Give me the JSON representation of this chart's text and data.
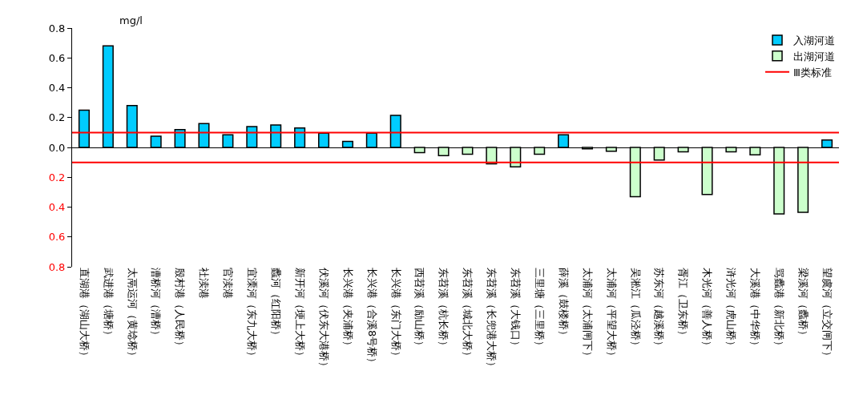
{
  "chart_data": {
    "type": "bar",
    "ylabel": "mg/l",
    "stacked": true,
    "legend": "top right",
    "categories": [
      "直湖港（湖山大桥）",
      "武进港（塘桥）",
      "太鬲运河（黄埝桥）",
      "漕桥河（漕桥）",
      "殷村港（人民桥）",
      "社渎港",
      "官渎港",
      "宜溧河（东九大桥）",
      "蠡河（红阳桥）",
      "新开河（埂上大桥）",
      "伏溪河（伏东大港桥）",
      "长兴港（夹浦桥）",
      "长兴港（合溪8号桥）",
      "长兴港（东门大桥）",
      "西苕溪（励山桥）",
      "东苕溪（杭长桥）",
      "东苕溪（城北大桥）",
      "东苕溪（长兜港大桥）",
      "东苕溪（大钱口）",
      "三里塘（三里桥）",
      "薛溪（鼓楼桥）",
      "太浦河（太浦闸下）",
      "太浦河（平望大桥）",
      "吴淞江（瓜泾桥）",
      "苏东河（越溪桥）",
      "胥江（卫东桥）",
      "木光河（善人桥）",
      "浒光河（虎山桥）",
      "大溪港（中华桥）",
      "骂蠡港（新北桥）",
      "梁溪河（蠡桥）",
      "望虞河（立交闸下）"
    ],
    "series": [
      {
        "name": "入湖河道",
        "color": "#00ccff",
        "values": [
          0.25,
          0.68,
          0.28,
          0.075,
          0.12,
          0.16,
          0.085,
          0.14,
          0.15,
          0.13,
          0.095,
          0.04,
          0.095,
          0.215,
          null,
          null,
          null,
          null,
          null,
          null,
          0.085,
          null,
          null,
          null,
          null,
          null,
          null,
          null,
          null,
          null,
          null,
          0.05
        ]
      },
      {
        "name": "出湖河道",
        "color": "#ccffcc",
        "values": [
          null,
          null,
          null,
          null,
          null,
          null,
          null,
          null,
          null,
          null,
          null,
          null,
          null,
          null,
          -0.035,
          -0.055,
          -0.045,
          -0.11,
          -0.13,
          -0.045,
          null,
          -0.01,
          -0.025,
          -0.33,
          -0.085,
          -0.03,
          -0.315,
          -0.03,
          -0.05,
          -0.445,
          -0.435,
          null
        ]
      }
    ],
    "ylim": [
      -0.8,
      0.8
    ],
    "yticks": [
      {
        "value": -0.8,
        "label": "0.8"
      },
      {
        "value": -0.6,
        "label": "0.6"
      },
      {
        "value": -0.4,
        "label": "0.4"
      },
      {
        "value": -0.2,
        "label": "0.2"
      },
      {
        "value": 0,
        "label": "0.0"
      },
      0.2,
      0.4,
      0.6,
      0.8
    ],
    "ref_lines": [
      {
        "axis": "y",
        "value": 0.1,
        "label": "Ⅲ类标准",
        "color": "#ff0000"
      },
      {
        "axis": "y",
        "value": -0.1,
        "color": "#ff0000"
      }
    ]
  }
}
